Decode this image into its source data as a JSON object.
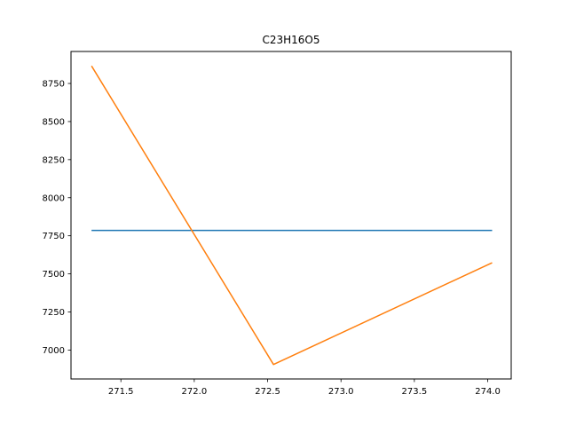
{
  "chart_data": {
    "type": "line",
    "title": "C23H16O5",
    "xlabel": "",
    "ylabel": "",
    "xlim": [
      271.16,
      274.16
    ],
    "ylim": [
      6810,
      8960
    ],
    "xticks": [
      271.5,
      272.0,
      272.5,
      273.0,
      273.5,
      274.0
    ],
    "xtick_labels": [
      "271.5",
      "272.0",
      "272.5",
      "273.0",
      "273.5",
      "274.0"
    ],
    "yticks": [
      7000,
      7250,
      7500,
      7750,
      8000,
      8250,
      8500,
      8750
    ],
    "ytick_labels": [
      "7000",
      "7250",
      "7500",
      "7750",
      "8000",
      "8250",
      "8500",
      "8750"
    ],
    "grid": false,
    "series": [
      {
        "color": "#1f77b4",
        "x": [
          271.3,
          274.03
        ],
        "y": [
          7785,
          7785
        ]
      },
      {
        "color": "#ff7f0e",
        "x": [
          271.3,
          272.54,
          274.03
        ],
        "y": [
          8865,
          6905,
          7573
        ]
      }
    ]
  }
}
